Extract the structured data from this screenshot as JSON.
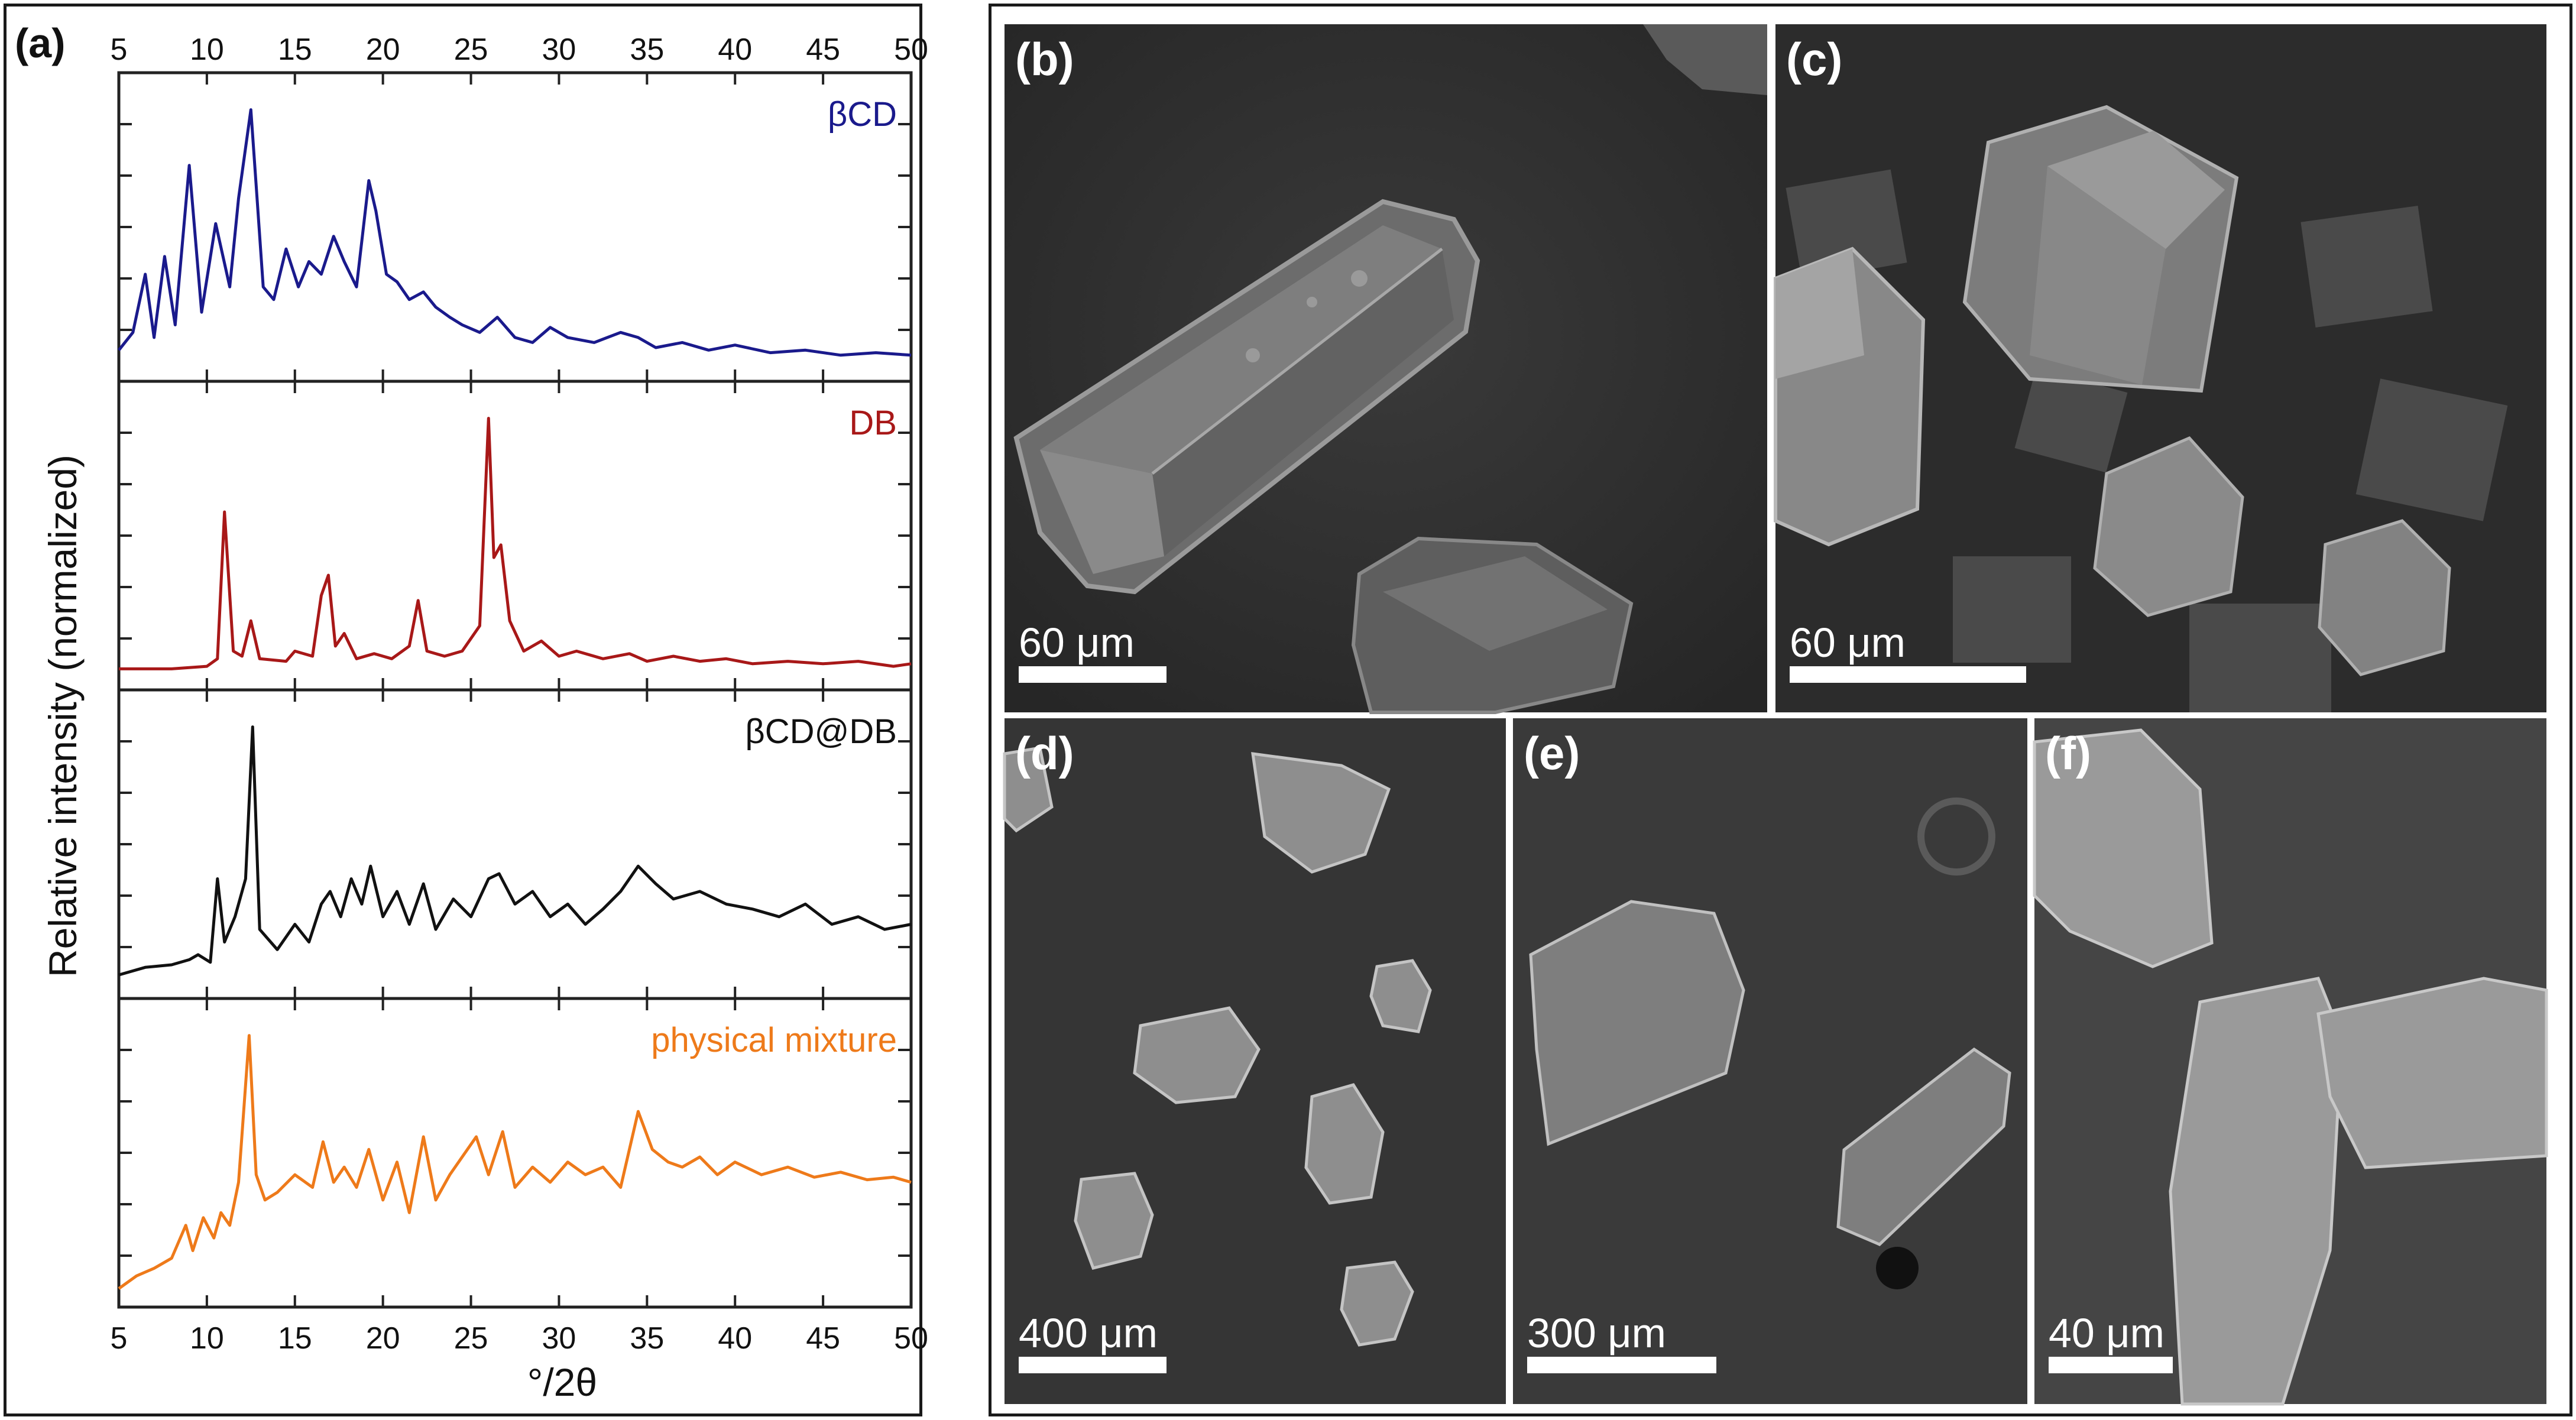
{
  "panel_a": {
    "label": "(a)",
    "chart_data": {
      "type": "line",
      "ylabel": "Relative intensity (normalized)",
      "xlabel": "°/2θ",
      "xlim": [
        5,
        50
      ],
      "xticks": [
        5,
        10,
        15,
        20,
        25,
        30,
        35,
        40,
        45,
        50
      ],
      "grid": false,
      "series": [
        {
          "name": "βCD",
          "color": "#1a1a8c",
          "x": [
            5,
            5.8,
            6.5,
            7.0,
            7.6,
            8.2,
            9.0,
            9.7,
            10.5,
            11.3,
            11.8,
            12.5,
            12.8,
            13.2,
            13.8,
            14.5,
            15.2,
            15.8,
            16.5,
            17.2,
            17.8,
            18.5,
            19.2,
            19.6,
            20.2,
            20.8,
            21.5,
            22.3,
            23.0,
            23.8,
            24.5,
            25.5,
            26.5,
            27.5,
            28.5,
            29.5,
            30.5,
            32.0,
            33.5,
            34.5,
            35.5,
            37.0,
            38.5,
            40.0,
            42.0,
            44.0,
            46.0,
            48.0,
            50.0
          ],
          "y": [
            0.05,
            0.12,
            0.35,
            0.1,
            0.42,
            0.15,
            0.78,
            0.2,
            0.55,
            0.3,
            0.65,
            1.0,
            0.7,
            0.3,
            0.25,
            0.45,
            0.3,
            0.4,
            0.35,
            0.5,
            0.4,
            0.3,
            0.72,
            0.6,
            0.35,
            0.32,
            0.25,
            0.28,
            0.22,
            0.18,
            0.15,
            0.12,
            0.18,
            0.1,
            0.08,
            0.14,
            0.1,
            0.08,
            0.12,
            0.1,
            0.06,
            0.08,
            0.05,
            0.07,
            0.04,
            0.05,
            0.03,
            0.04,
            0.03
          ]
        },
        {
          "name": "DB",
          "color": "#a81818",
          "x": [
            5,
            8.0,
            10.0,
            10.6,
            11.0,
            11.5,
            12.0,
            12.5,
            13.0,
            14.5,
            15.0,
            16.0,
            16.5,
            16.9,
            17.3,
            17.8,
            18.5,
            19.5,
            20.5,
            21.5,
            22.0,
            22.5,
            23.5,
            24.5,
            25.5,
            26.0,
            26.3,
            26.7,
            27.2,
            28.0,
            29.0,
            30.0,
            31.0,
            32.5,
            34.0,
            35.0,
            36.5,
            38.0,
            39.5,
            41.0,
            43.0,
            45.0,
            47.0,
            49.0,
            50.0
          ],
          "y": [
            0.01,
            0.01,
            0.02,
            0.05,
            0.63,
            0.08,
            0.06,
            0.2,
            0.05,
            0.04,
            0.08,
            0.06,
            0.3,
            0.38,
            0.1,
            0.15,
            0.05,
            0.07,
            0.05,
            0.1,
            0.28,
            0.08,
            0.06,
            0.08,
            0.18,
            1.0,
            0.45,
            0.5,
            0.2,
            0.08,
            0.12,
            0.06,
            0.08,
            0.05,
            0.07,
            0.04,
            0.06,
            0.04,
            0.05,
            0.03,
            0.04,
            0.03,
            0.04,
            0.02,
            0.03
          ]
        },
        {
          "name": "βCD@DB",
          "color": "#111111",
          "x": [
            5,
            6.5,
            8.0,
            9.0,
            9.5,
            10.2,
            10.6,
            11.0,
            11.6,
            12.2,
            12.6,
            13.0,
            14.0,
            15.0,
            15.8,
            16.5,
            17.0,
            17.6,
            18.2,
            18.8,
            19.3,
            20.0,
            20.8,
            21.5,
            22.3,
            23.0,
            24.0,
            25.0,
            26.0,
            26.6,
            27.5,
            28.5,
            29.5,
            30.5,
            31.5,
            32.5,
            33.5,
            34.5,
            35.5,
            36.5,
            38.0,
            39.5,
            41.0,
            42.5,
            44.0,
            45.5,
            47.0,
            48.5,
            50.0
          ],
          "y": [
            0.02,
            0.05,
            0.06,
            0.08,
            0.1,
            0.07,
            0.4,
            0.15,
            0.25,
            0.4,
            1.0,
            0.2,
            0.12,
            0.22,
            0.15,
            0.3,
            0.35,
            0.25,
            0.4,
            0.3,
            0.45,
            0.25,
            0.35,
            0.22,
            0.38,
            0.2,
            0.32,
            0.25,
            0.4,
            0.42,
            0.3,
            0.35,
            0.25,
            0.3,
            0.22,
            0.28,
            0.35,
            0.45,
            0.38,
            0.32,
            0.35,
            0.3,
            0.28,
            0.25,
            0.3,
            0.22,
            0.25,
            0.2,
            0.22
          ]
        },
        {
          "name": "physical mixture",
          "color": "#ee7a1a",
          "x": [
            5,
            6.0,
            7.0,
            8.0,
            8.8,
            9.2,
            9.8,
            10.4,
            10.8,
            11.3,
            11.8,
            12.4,
            12.8,
            13.3,
            14.0,
            15.0,
            16.0,
            16.6,
            17.2,
            17.8,
            18.5,
            19.2,
            20.0,
            20.8,
            21.5,
            22.3,
            23.0,
            23.8,
            24.5,
            25.3,
            26.0,
            26.8,
            27.5,
            28.5,
            29.5,
            30.5,
            31.5,
            32.5,
            33.5,
            34.5,
            35.3,
            36.2,
            37.0,
            38.0,
            39.0,
            40.0,
            41.5,
            43.0,
            44.5,
            46.0,
            47.5,
            49.0,
            50.0
          ],
          "y": [
            0.0,
            0.05,
            0.08,
            0.12,
            0.25,
            0.15,
            0.28,
            0.2,
            0.3,
            0.25,
            0.42,
            1.0,
            0.45,
            0.35,
            0.38,
            0.45,
            0.4,
            0.58,
            0.42,
            0.48,
            0.4,
            0.55,
            0.35,
            0.5,
            0.3,
            0.6,
            0.35,
            0.45,
            0.52,
            0.6,
            0.45,
            0.62,
            0.4,
            0.48,
            0.42,
            0.5,
            0.45,
            0.48,
            0.4,
            0.7,
            0.55,
            0.5,
            0.48,
            0.52,
            0.45,
            0.5,
            0.45,
            0.48,
            0.44,
            0.46,
            0.43,
            0.44,
            0.42
          ]
        }
      ]
    }
  },
  "sem_images": [
    {
      "id": "b",
      "label": "(b)",
      "scale": "60 μm"
    },
    {
      "id": "c",
      "label": "(c)",
      "scale": "60 μm"
    },
    {
      "id": "d",
      "label": "(d)",
      "scale": "400 μm"
    },
    {
      "id": "e",
      "label": "(e)",
      "scale": "300 μm"
    },
    {
      "id": "f",
      "label": "(f)",
      "scale": "40 μm"
    }
  ]
}
